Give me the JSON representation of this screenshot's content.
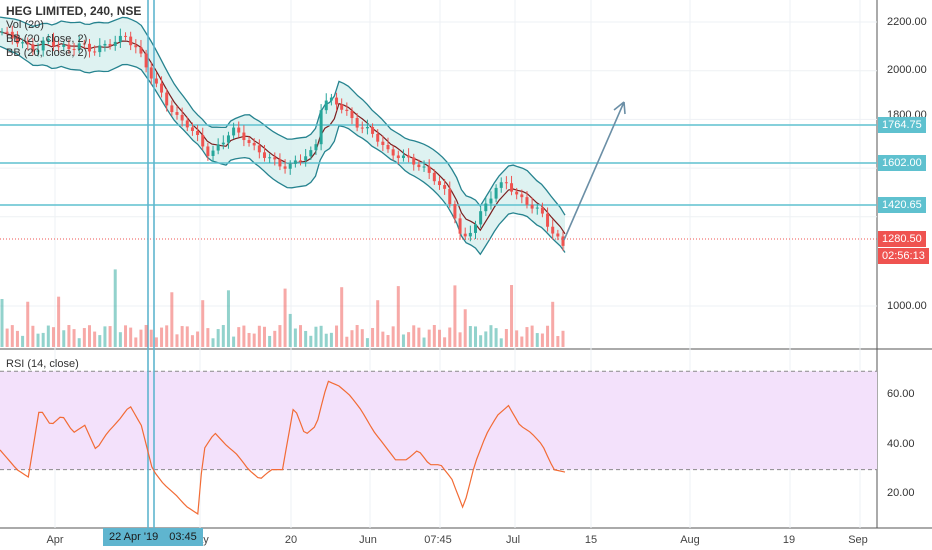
{
  "legend": {
    "symbol": "HEG LIMITED, 240, NSE",
    "vol": "Vol (20)",
    "bb1": "BB (20, close, 2)",
    "bb2": "BB (20, close, 2)"
  },
  "rsi_legend": "RSI (14, close)",
  "colors": {
    "up": "#26a69a",
    "down": "#ef5350",
    "bb_fill": "#d6efee",
    "bb_line": "#26838f",
    "basis": "#7a1f1f",
    "hline": "#5fc1cf",
    "rsi_bg": "#f3e1fb",
    "rsi_line": "#f26b35",
    "last_price": "#ef5350",
    "arrow": "#6b8fa6"
  },
  "price_scale": [
    "2200.00",
    "2000.00",
    "1800.00",
    "1000.00"
  ],
  "horizontal_levels": [
    {
      "label": "1764.75",
      "price": 1764.75
    },
    {
      "label": "1602.00",
      "price": 1602.0
    },
    {
      "label": "1420.65",
      "price": 1420.65
    }
  ],
  "last_price": {
    "label": "1280.50",
    "countdown": "02:56:13"
  },
  "rsi_scale": [
    "60.00",
    "40.00",
    "20.00"
  ],
  "x_labels": [
    "Apr",
    "ay",
    "20",
    "Jun",
    "07:45",
    "Jul",
    "15",
    "Aug",
    "19",
    "Sep"
  ],
  "crosshair_date": "22 Apr '19",
  "crosshair_time": "03:45",
  "chart_data": {
    "type": "candlestick",
    "instrument": "HEG LIMITED",
    "interval": "240",
    "exchange": "NSE",
    "ylim": [
      1150,
      2300
    ],
    "close_path": [
      [
        0,
        2160
      ],
      [
        0.03,
        2120
      ],
      [
        0.06,
        2080
      ],
      [
        0.08,
        2130
      ],
      [
        0.1,
        2100
      ],
      [
        0.12,
        2090
      ],
      [
        0.14,
        2110
      ],
      [
        0.16,
        2080
      ],
      [
        0.18,
        2100
      ],
      [
        0.2,
        2120
      ],
      [
        0.22,
        2140
      ],
      [
        0.24,
        2090
      ],
      [
        0.25,
        2050
      ],
      [
        0.27,
        1960
      ],
      [
        0.29,
        1880
      ],
      [
        0.31,
        1810
      ],
      [
        0.33,
        1780
      ],
      [
        0.35,
        1720
      ],
      [
        0.37,
        1650
      ],
      [
        0.39,
        1700
      ],
      [
        0.41,
        1760
      ],
      [
        0.43,
        1730
      ],
      [
        0.45,
        1680
      ],
      [
        0.47,
        1650
      ],
      [
        0.49,
        1620
      ],
      [
        0.51,
        1600
      ],
      [
        0.53,
        1640
      ],
      [
        0.55,
        1660
      ],
      [
        0.56,
        1700
      ],
      [
        0.57,
        1870
      ],
      [
        0.59,
        1880
      ],
      [
        0.61,
        1840
      ],
      [
        0.63,
        1780
      ],
      [
        0.65,
        1760
      ],
      [
        0.67,
        1720
      ],
      [
        0.69,
        1660
      ],
      [
        0.71,
        1650
      ],
      [
        0.73,
        1630
      ],
      [
        0.75,
        1600
      ],
      [
        0.77,
        1560
      ],
      [
        0.79,
        1500
      ],
      [
        0.81,
        1390
      ],
      [
        0.82,
        1290
      ],
      [
        0.84,
        1360
      ],
      [
        0.86,
        1440
      ],
      [
        0.88,
        1520
      ],
      [
        0.9,
        1540
      ],
      [
        0.92,
        1480
      ],
      [
        0.94,
        1450
      ],
      [
        0.96,
        1420
      ],
      [
        0.98,
        1340
      ],
      [
        1.0,
        1280
      ]
    ],
    "rsi_path": [
      [
        0,
        38
      ],
      [
        0.03,
        30
      ],
      [
        0.05,
        27
      ],
      [
        0.07,
        55
      ],
      [
        0.09,
        48
      ],
      [
        0.11,
        52
      ],
      [
        0.13,
        45
      ],
      [
        0.15,
        48
      ],
      [
        0.17,
        38
      ],
      [
        0.19,
        45
      ],
      [
        0.21,
        50
      ],
      [
        0.23,
        56
      ],
      [
        0.25,
        48
      ],
      [
        0.27,
        30
      ],
      [
        0.29,
        24
      ],
      [
        0.31,
        20
      ],
      [
        0.33,
        15
      ],
      [
        0.35,
        12
      ],
      [
        0.36,
        38
      ],
      [
        0.38,
        45
      ],
      [
        0.4,
        40
      ],
      [
        0.42,
        36
      ],
      [
        0.44,
        30
      ],
      [
        0.46,
        26
      ],
      [
        0.48,
        30
      ],
      [
        0.5,
        30
      ],
      [
        0.52,
        56
      ],
      [
        0.54,
        44
      ],
      [
        0.56,
        48
      ],
      [
        0.58,
        66
      ],
      [
        0.6,
        64
      ],
      [
        0.62,
        60
      ],
      [
        0.64,
        54
      ],
      [
        0.66,
        46
      ],
      [
        0.68,
        40
      ],
      [
        0.7,
        34
      ],
      [
        0.72,
        34
      ],
      [
        0.74,
        38
      ],
      [
        0.76,
        32
      ],
      [
        0.78,
        32
      ],
      [
        0.8,
        26
      ],
      [
        0.82,
        14
      ],
      [
        0.84,
        32
      ],
      [
        0.86,
        44
      ],
      [
        0.88,
        52
      ],
      [
        0.9,
        56
      ],
      [
        0.92,
        48
      ],
      [
        0.94,
        45
      ],
      [
        0.96,
        40
      ],
      [
        0.98,
        30
      ],
      [
        1.0,
        29
      ]
    ],
    "rsi_bands": [
      30,
      70
    ],
    "levels": [
      1764.75,
      1602.0,
      1420.65
    ],
    "last": 1280.5
  }
}
